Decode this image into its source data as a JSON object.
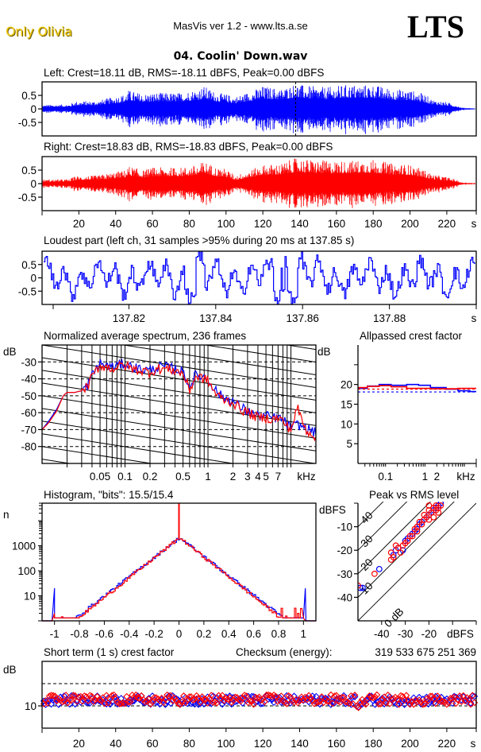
{
  "header": {
    "brand": "Only Olivia",
    "app_title": "MasVis ver 1.2 - www.lts.a.se",
    "logo": "LTS",
    "file_name": "04. Coolin' Down.wav"
  },
  "colors": {
    "left": "#0000ff",
    "right": "#ff0000",
    "brand": "#f0c800"
  },
  "chart_data": [
    {
      "id": "left_waveform",
      "type": "line",
      "title": "Left: Crest=18.11 dB, RMS=-18.11 dBFS, Peak=0.00 dBFS",
      "channel": "left",
      "xlim": [
        0,
        236
      ],
      "ylim": [
        -1,
        1
      ],
      "yticks": [
        0.5,
        0,
        -0.5
      ],
      "ytick_labels": [
        "0.5",
        "0",
        "-0.5"
      ],
      "marker_at_s": 137.85,
      "envelope": {
        "x": [
          0,
          15,
          18,
          30,
          45,
          47,
          55,
          60,
          75,
          85,
          88,
          95,
          100,
          105,
          115,
          120,
          130,
          138,
          140,
          145,
          155,
          165,
          180,
          190,
          200,
          208,
          212,
          220,
          225,
          228,
          236
        ],
        "amp": [
          0.15,
          0.17,
          0.28,
          0.3,
          0.55,
          0.7,
          0.55,
          0.6,
          0.6,
          0.75,
          0.85,
          0.6,
          0.55,
          0.45,
          0.7,
          0.85,
          0.75,
          0.95,
          0.9,
          0.85,
          0.8,
          0.9,
          0.9,
          0.75,
          0.7,
          0.55,
          0.35,
          0.25,
          0.15,
          0.05,
          0.02
        ]
      }
    },
    {
      "id": "right_waveform",
      "type": "line",
      "title": "Right: Crest=18.83 dB, RMS=-18.83 dBFS, Peak=0.00 dBFS",
      "channel": "right",
      "xlim": [
        0,
        236
      ],
      "ylim": [
        -1,
        1
      ],
      "yticks": [
        0.5,
        0,
        -0.5
      ],
      "ytick_labels": [
        "0.5",
        "0",
        "-0.5"
      ],
      "xticks": [
        20,
        40,
        60,
        80,
        100,
        120,
        140,
        160,
        180,
        200,
        220
      ],
      "xunit": "s",
      "envelope": {
        "x": [
          0,
          15,
          18,
          30,
          45,
          47,
          55,
          60,
          75,
          85,
          88,
          95,
          100,
          105,
          115,
          120,
          130,
          138,
          140,
          145,
          155,
          165,
          180,
          190,
          200,
          208,
          212,
          220,
          225,
          228,
          236
        ],
        "amp": [
          0.15,
          0.17,
          0.28,
          0.3,
          0.5,
          0.65,
          0.5,
          0.6,
          0.6,
          0.7,
          0.85,
          0.6,
          0.55,
          0.3,
          0.55,
          0.7,
          0.75,
          0.95,
          0.95,
          0.9,
          0.85,
          0.85,
          0.9,
          0.75,
          0.7,
          0.5,
          0.35,
          0.25,
          0.15,
          0.05,
          0.02
        ]
      }
    },
    {
      "id": "loudest_part",
      "type": "line",
      "title": "Loudest part (left  ch, 31 samples >95% during 20 ms at 137.85 s)",
      "xlim": [
        137.8,
        137.9
      ],
      "ylim": [
        -1,
        1
      ],
      "xticks": [
        137.82,
        137.84,
        137.86,
        137.88
      ],
      "xtick_labels": [
        "137.82",
        "137.84",
        "137.86",
        "137.88"
      ],
      "xunit": "s",
      "yticks": [
        0.5,
        0,
        -0.5
      ],
      "ytick_labels": [
        "0.5",
        "0",
        "-0.5"
      ]
    },
    {
      "id": "spectrum",
      "type": "line",
      "title": "Normalized average spectrum, 236 frames",
      "xscale": "log",
      "xlim_khz": [
        0.01,
        20
      ],
      "ylim": [
        -90,
        -20
      ],
      "ylabel": "dB",
      "xunit": "kHz",
      "yticks": [
        -30,
        -40,
        -50,
        -60,
        -70,
        -80
      ],
      "ytick_labels": [
        "-30",
        "-40",
        "-50",
        "-60",
        "-70",
        "-80"
      ],
      "xtick_labels": [
        {
          "v": 0.05,
          "t": "0.05"
        },
        {
          "v": 0.1,
          "t": "0.1"
        },
        {
          "v": 0.2,
          "t": "0.2"
        },
        {
          "v": 0.5,
          "t": "0.5"
        },
        {
          "v": 1,
          "t": "1"
        },
        {
          "v": 2,
          "t": "2"
        },
        {
          "v": 3,
          "t": "3"
        },
        {
          "v": 4,
          "t": "4"
        },
        {
          "v": 5,
          "t": "5"
        },
        {
          "v": 7,
          "t": "7"
        }
      ],
      "freq_khz": [
        0.01,
        0.012,
        0.015,
        0.018,
        0.02,
        0.025,
        0.03,
        0.035,
        0.04,
        0.045,
        0.05,
        0.06,
        0.07,
        0.08,
        0.1,
        0.12,
        0.15,
        0.2,
        0.25,
        0.3,
        0.4,
        0.5,
        0.55,
        0.6,
        0.7,
        0.8,
        1,
        1.2,
        1.5,
        2,
        2.5,
        3,
        4,
        5,
        6,
        7,
        8,
        9,
        10,
        12,
        15,
        20
      ],
      "series": [
        {
          "name": "left",
          "values": [
            -70,
            -65,
            -58,
            -50,
            -48,
            -48,
            -47,
            -44,
            -38,
            -34,
            -31,
            -32,
            -33,
            -32,
            -31,
            -33,
            -34,
            -35,
            -33,
            -33,
            -34,
            -36,
            -40,
            -45,
            -38,
            -38,
            -40,
            -46,
            -51,
            -53,
            -57,
            -59,
            -62,
            -62,
            -63,
            -63,
            -64,
            -67,
            -69,
            -67,
            -69,
            -72
          ]
        },
        {
          "name": "right",
          "values": [
            -70,
            -66,
            -59,
            -50,
            -48,
            -48,
            -47,
            -45,
            -39,
            -35,
            -32,
            -33,
            -34,
            -33,
            -32,
            -34,
            -35,
            -36,
            -34,
            -34,
            -35,
            -37,
            -42,
            -47,
            -39,
            -39,
            -41,
            -48,
            -52,
            -54,
            -58,
            -60,
            -63,
            -63,
            -64,
            -63,
            -65,
            -68,
            -70,
            -57,
            -70,
            -74
          ]
        }
      ]
    },
    {
      "id": "allpass_crest",
      "type": "line",
      "title": "Allpassed crest factor",
      "ylabel": "dB",
      "xunit": "kHz",
      "ylim": [
        0,
        30
      ],
      "yticks": [
        20,
        15,
        10,
        5
      ],
      "ytick_labels": [
        "20",
        "15",
        "10",
        "5"
      ],
      "xtick_labels": [
        {
          "v": 0.1,
          "t": "0.1"
        },
        {
          "v": 1,
          "t": "1"
        },
        {
          "v": 2,
          "t": "2"
        }
      ],
      "freq_khz": [
        0.02,
        0.05,
        0.1,
        0.2,
        0.5,
        1,
        2,
        5,
        10,
        20
      ],
      "series": [
        {
          "name": "left",
          "values": [
            19.0,
            19.6,
            20.0,
            19.8,
            20.0,
            19.8,
            19.2,
            18.8,
            18.4,
            18.2
          ],
          "reference": 18.11
        },
        {
          "name": "right",
          "values": [
            19.2,
            19.5,
            19.7,
            19.4,
            19.0,
            19.0,
            18.9,
            18.9,
            19.0,
            19.0
          ],
          "reference": 18.83
        }
      ]
    },
    {
      "id": "histogram",
      "type": "line",
      "title": "Histogram, \"bits\": 15.5/15.4",
      "ylabel": "n",
      "yscale": "log",
      "xlim": [
        -1.1,
        1.1
      ],
      "xticks": [
        -1,
        -0.8,
        -0.6,
        -0.4,
        -0.2,
        0,
        0.2,
        0.4,
        0.6,
        0.8,
        1
      ],
      "xtick_labels": [
        "-1",
        "-0.8",
        "-0.6",
        "-0.4",
        "-0.2",
        "0",
        "0.2",
        "0.4",
        "0.6",
        "0.8",
        "1"
      ],
      "yticks": [
        10,
        100,
        1000
      ],
      "ytick_labels": [
        "10",
        "100",
        "1000"
      ],
      "peak_count_at_zero": 2000,
      "series": [
        {
          "name": "left",
          "clip_count_neg": 20,
          "clip_count_pos": 20
        },
        {
          "name": "right",
          "clip_count_neg": 2,
          "clip_count_pos": 1
        }
      ]
    },
    {
      "id": "peak_vs_rms",
      "type": "scatter",
      "title": "Peak vs RMS level",
      "xlabel": "dBFS",
      "ylabel": "dBFS",
      "xlim": [
        -50,
        0
      ],
      "ylim": [
        -50,
        0
      ],
      "xticks": [
        -40,
        -30,
        -20
      ],
      "xtick_labels": [
        "-40",
        "-30",
        "-20"
      ],
      "yticks": [
        -10,
        -20,
        -30,
        -40
      ],
      "ytick_labels": [
        "-10",
        "-20",
        "-30",
        "-40"
      ],
      "crest_lines_db": [
        0,
        10,
        20,
        30,
        40
      ],
      "crest_line_labels": [
        "0 dB",
        "10",
        "20",
        "30",
        "40"
      ],
      "series": [
        {
          "name": "left",
          "points": [
            [
              -49,
              -36
            ],
            [
              -48,
              -36
            ],
            [
              -41,
              -28
            ],
            [
              -35,
              -22
            ],
            [
              -34,
              -20
            ],
            [
              -33,
              -19
            ],
            [
              -31,
              -20
            ],
            [
              -30,
              -16
            ],
            [
              -29,
              -15
            ],
            [
              -27,
              -13
            ],
            [
              -26,
              -12
            ],
            [
              -25,
              -11
            ],
            [
              -24,
              -9
            ],
            [
              -23,
              -8
            ],
            [
              -22,
              -7
            ],
            [
              -21,
              -6
            ],
            [
              -20,
              -5
            ],
            [
              -19,
              -4
            ],
            [
              -18,
              -3
            ],
            [
              -17,
              -2
            ],
            [
              -16,
              -1
            ],
            [
              -15,
              0
            ]
          ]
        },
        {
          "name": "right",
          "points": [
            [
              -50,
              -35
            ],
            [
              -43,
              -30
            ],
            [
              -36,
              -21
            ],
            [
              -36,
              -24
            ],
            [
              -35,
              -23
            ],
            [
              -34,
              -18
            ],
            [
              -33,
              -19
            ],
            [
              -32,
              -21
            ],
            [
              -31,
              -18
            ],
            [
              -30,
              -17
            ],
            [
              -29,
              -16
            ],
            [
              -28,
              -14
            ],
            [
              -27,
              -14
            ],
            [
              -26,
              -11
            ],
            [
              -25,
              -12
            ],
            [
              -25,
              -10
            ],
            [
              -24,
              -8
            ],
            [
              -23,
              -9
            ],
            [
              -22,
              -7
            ],
            [
              -22,
              -5
            ],
            [
              -21,
              -6
            ],
            [
              -20,
              -3
            ],
            [
              -20,
              -7
            ],
            [
              -19,
              -4
            ],
            [
              -18,
              -2
            ],
            [
              -18,
              -6
            ],
            [
              -17,
              -3
            ],
            [
              -17,
              -1
            ],
            [
              -16,
              -4
            ],
            [
              -16,
              -2
            ],
            [
              -15,
              -1
            ],
            [
              -20,
              -1
            ]
          ]
        }
      ]
    },
    {
      "id": "short_term_crest",
      "type": "scatter",
      "title": "Short term (1 s) crest factor",
      "ylabel": "dB",
      "xunit": "s",
      "xlim": [
        0,
        236
      ],
      "ylim": [
        5,
        20
      ],
      "yticks": [
        10
      ],
      "ytick_labels": [
        "10"
      ],
      "dashed_levels": [
        10,
        15
      ],
      "xticks": [
        20,
        40,
        60,
        80,
        100,
        120,
        140,
        160,
        180,
        200,
        220
      ],
      "series": [
        {
          "name": "left",
          "mean": 11.3,
          "spread": 1.0
        },
        {
          "name": "right",
          "mean": 11.4,
          "spread": 1.1
        }
      ]
    }
  ],
  "checksum": {
    "label": "Checksum (energy):",
    "value": "319 533 675 251 369"
  }
}
